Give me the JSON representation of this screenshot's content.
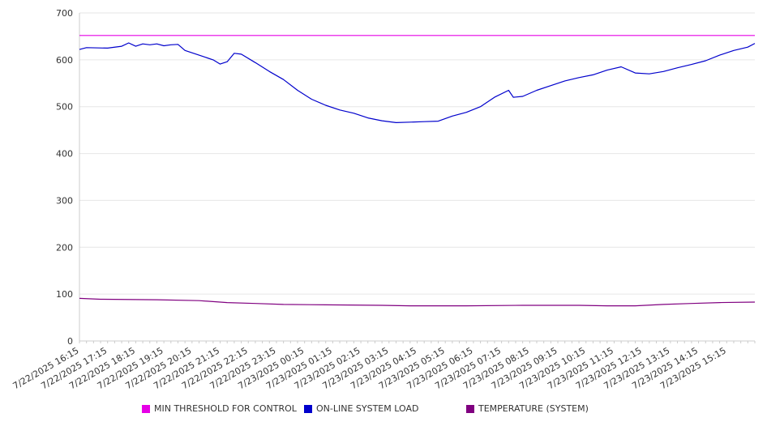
{
  "chart_data": {
    "type": "line",
    "ylim": [
      0,
      700
    ],
    "y_ticks": [
      "0",
      "100",
      "200",
      "300",
      "400",
      "500",
      "600",
      "700"
    ],
    "x_ticks": [
      "7/22/2025 16:15",
      "7/22/2025 17:15",
      "7/22/2025 18:15",
      "7/22/2025 19:15",
      "7/22/2025 20:15",
      "7/22/2025 21:15",
      "7/22/2025 22:15",
      "7/22/2025 23:15",
      "7/23/2025 00:15",
      "7/23/2025 01:15",
      "7/23/2025 02:15",
      "7/23/2025 03:15",
      "7/23/2025 04:15",
      "7/23/2025 05:15",
      "7/23/2025 06:15",
      "7/23/2025 07:15",
      "7/23/2025 08:15",
      "7/23/2025 09:15",
      "7/23/2025 10:15",
      "7/23/2025 11:15",
      "7/23/2025 12:15",
      "7/23/2025 13:15",
      "7/23/2025 14:15",
      "7/23/2025 15:15"
    ],
    "x_range": [
      "7/22/2025 16:15",
      "7/23/2025 16:15"
    ],
    "grid": "horizontal",
    "legend_position": "bottom",
    "series": [
      {
        "name": "MIN THRESHOLD FOR CONTROL",
        "color": "#e600e6",
        "points": [
          [
            "7/22/2025 16:15",
            652
          ],
          [
            "7/23/2025 16:15",
            652
          ]
        ]
      },
      {
        "name": "ON-LINE SYSTEM LOAD",
        "color": "#0000cc",
        "points": [
          [
            "7/22/2025 16:15",
            622
          ],
          [
            "7/22/2025 16:30",
            626
          ],
          [
            "7/22/2025 17:15",
            625
          ],
          [
            "7/22/2025 17:45",
            629
          ],
          [
            "7/22/2025 18:00",
            636
          ],
          [
            "7/22/2025 18:15",
            629
          ],
          [
            "7/22/2025 18:30",
            634
          ],
          [
            "7/22/2025 18:45",
            632
          ],
          [
            "7/22/2025 19:00",
            634
          ],
          [
            "7/22/2025 19:15",
            630
          ],
          [
            "7/22/2025 19:30",
            632
          ],
          [
            "7/22/2025 19:45",
            633
          ],
          [
            "7/22/2025 20:00",
            620
          ],
          [
            "7/22/2025 20:30",
            610
          ],
          [
            "7/22/2025 21:00",
            600
          ],
          [
            "7/22/2025 21:15",
            591
          ],
          [
            "7/22/2025 21:30",
            596
          ],
          [
            "7/22/2025 21:45",
            614
          ],
          [
            "7/22/2025 22:00",
            612
          ],
          [
            "7/22/2025 22:30",
            594
          ],
          [
            "7/22/2025 23:00",
            575
          ],
          [
            "7/22/2025 23:30",
            558
          ],
          [
            "7/23/2025 00:00",
            535
          ],
          [
            "7/23/2025 00:30",
            516
          ],
          [
            "7/23/2025 01:00",
            503
          ],
          [
            "7/23/2025 01:30",
            493
          ],
          [
            "7/23/2025 02:00",
            486
          ],
          [
            "7/23/2025 02:30",
            476
          ],
          [
            "7/23/2025 03:00",
            470
          ],
          [
            "7/23/2025 03:30",
            466
          ],
          [
            "7/23/2025 04:00",
            467
          ],
          [
            "7/23/2025 04:30",
            468
          ],
          [
            "7/23/2025 05:00",
            469
          ],
          [
            "7/23/2025 05:30",
            480
          ],
          [
            "7/23/2025 06:00",
            488
          ],
          [
            "7/23/2025 06:30",
            500
          ],
          [
            "7/23/2025 07:00",
            520
          ],
          [
            "7/23/2025 07:30",
            535
          ],
          [
            "7/23/2025 07:40",
            520
          ],
          [
            "7/23/2025 08:00",
            522
          ],
          [
            "7/23/2025 08:30",
            535
          ],
          [
            "7/23/2025 09:00",
            545
          ],
          [
            "7/23/2025 09:30",
            555
          ],
          [
            "7/23/2025 10:00",
            562
          ],
          [
            "7/23/2025 10:30",
            568
          ],
          [
            "7/23/2025 11:00",
            578
          ],
          [
            "7/23/2025 11:30",
            585
          ],
          [
            "7/23/2025 12:00",
            572
          ],
          [
            "7/23/2025 12:30",
            570
          ],
          [
            "7/23/2025 13:00",
            575
          ],
          [
            "7/23/2025 13:30",
            583
          ],
          [
            "7/23/2025 14:00",
            590
          ],
          [
            "7/23/2025 14:30",
            598
          ],
          [
            "7/23/2025 15:00",
            610
          ],
          [
            "7/23/2025 15:30",
            620
          ],
          [
            "7/23/2025 16:00",
            627
          ],
          [
            "7/23/2025 16:15",
            635
          ]
        ]
      },
      {
        "name": "TEMPERATURE (SYSTEM)",
        "color": "#800080",
        "points": [
          [
            "7/22/2025 16:15",
            91
          ],
          [
            "7/22/2025 17:00",
            89
          ],
          [
            "7/22/2025 19:00",
            88
          ],
          [
            "7/22/2025 20:30",
            86
          ],
          [
            "7/22/2025 21:30",
            82
          ],
          [
            "7/22/2025 22:30",
            80
          ],
          [
            "7/22/2025 23:30",
            78
          ],
          [
            "7/23/2025 01:00",
            77
          ],
          [
            "7/23/2025 03:00",
            76
          ],
          [
            "7/23/2025 04:00",
            75
          ],
          [
            "7/23/2025 06:00",
            75
          ],
          [
            "7/23/2025 08:00",
            76
          ],
          [
            "7/23/2025 10:00",
            76
          ],
          [
            "7/23/2025 11:00",
            75
          ],
          [
            "7/23/2025 12:00",
            75
          ],
          [
            "7/23/2025 13:00",
            78
          ],
          [
            "7/23/2025 14:00",
            80
          ],
          [
            "7/23/2025 15:00",
            82
          ],
          [
            "7/23/2025 16:15",
            83
          ]
        ]
      }
    ]
  }
}
